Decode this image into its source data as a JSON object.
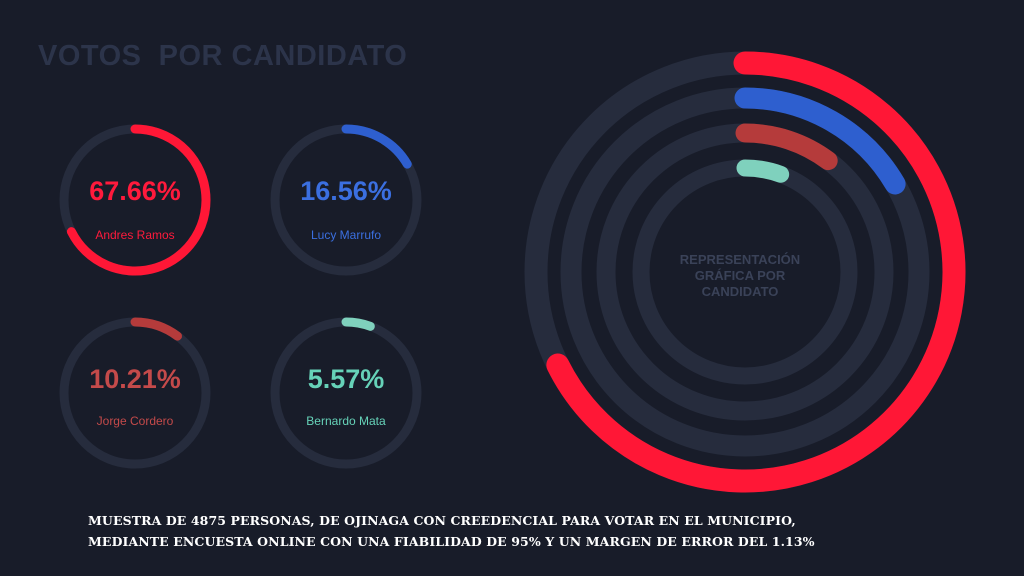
{
  "title": "VOTOS  POR CANDIDATO",
  "center_label": "REPRESENTACIÓN GRÁFICA POR CANDIDATO",
  "footer": {
    "line1": "MUESTRA DE 4875 PERSONAS, DE OJINAGA CON CREEDENCIAL PARA VOTAR EN EL MUNICIPIO,",
    "line2": "MEDIANTE ENCUESTA ONLINE CON UNA FIABILIDAD DE 95% Y UN MARGEN DE ERROR DEL 1.13%"
  },
  "colors": {
    "background": "#181c29",
    "track": "#262c3d",
    "title": "#2c344a"
  },
  "chart_data": {
    "type": "radial-bar",
    "series": [
      {
        "name": "Andres Ramos",
        "value": 67.66,
        "label": "67.66%",
        "color": "#ff1736",
        "text_color": "#ff1a3c"
      },
      {
        "name": "Lucy Marrufo",
        "value": 16.56,
        "label": "16.56%",
        "color": "#2e5fcf",
        "text_color": "#3b6fe0"
      },
      {
        "name": "Jorge Cordero",
        "value": 10.21,
        "label": "10.21%",
        "color": "#b53b3b",
        "text_color": "#c44a4a"
      },
      {
        "name": "Bernardo Mata",
        "value": 5.57,
        "label": "5.57%",
        "color": "#7fd1bd",
        "text_color": "#66d2b8"
      }
    ]
  }
}
